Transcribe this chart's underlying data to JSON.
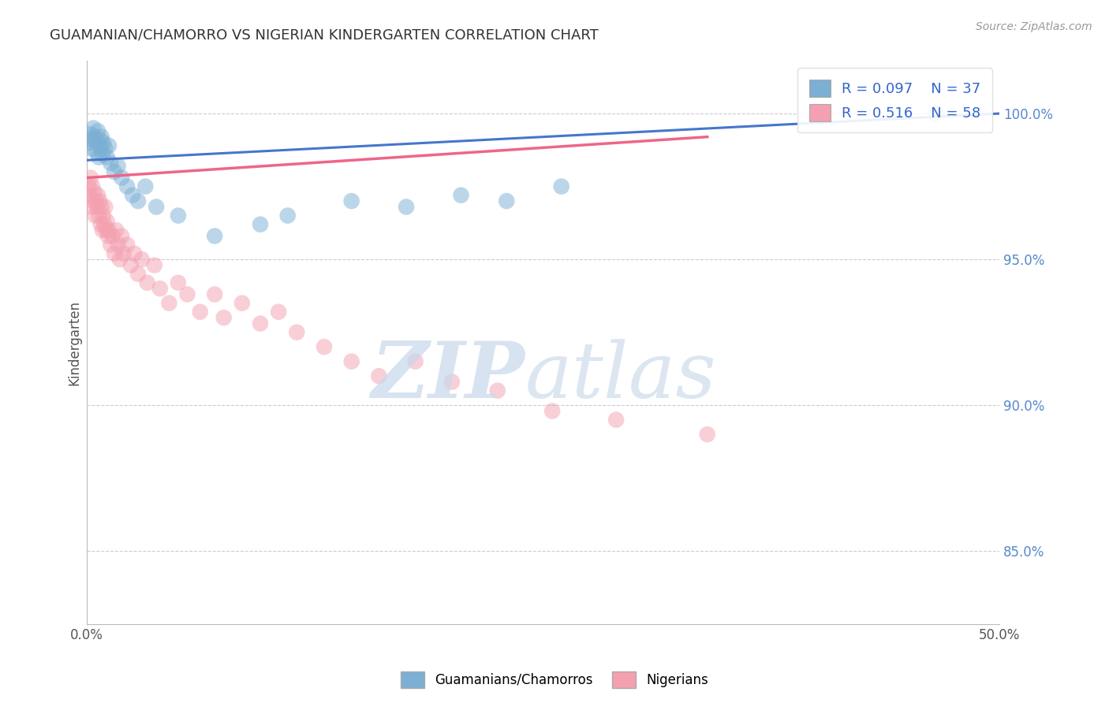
{
  "title": "GUAMANIAN/CHAMORRO VS NIGERIAN KINDERGARTEN CORRELATION CHART",
  "source": "Source: ZipAtlas.com",
  "ylabel": "Kindergarten",
  "xlim": [
    0.0,
    50.0
  ],
  "ylim": [
    82.5,
    101.8
  ],
  "yticks": [
    85.0,
    90.0,
    95.0,
    100.0
  ],
  "ytick_labels": [
    "85.0%",
    "90.0%",
    "95.0%",
    "100.0%"
  ],
  "xticks": [
    0.0,
    10.0,
    20.0,
    30.0,
    40.0,
    50.0
  ],
  "xtick_labels": [
    "0.0%",
    "",
    "",
    "",
    "",
    "50.0%"
  ],
  "blue_R": 0.097,
  "blue_N": 37,
  "pink_R": 0.516,
  "pink_N": 58,
  "blue_color": "#7BAFD4",
  "pink_color": "#F4A0B0",
  "blue_line_color": "#4477CC",
  "pink_line_color": "#EE6688",
  "legend_label_blue": "Guamanians/Chamorros",
  "legend_label_pink": "Nigerians",
  "blue_x": [
    0.15,
    0.2,
    0.25,
    0.3,
    0.35,
    0.4,
    0.5,
    0.55,
    0.6,
    0.65,
    0.7,
    0.75,
    0.8,
    0.85,
    0.9,
    1.0,
    1.1,
    1.2,
    1.3,
    1.5,
    1.7,
    1.9,
    2.2,
    2.5,
    2.8,
    3.2,
    3.8,
    5.0,
    7.0,
    9.5,
    11.0,
    14.5,
    17.5,
    20.5,
    23.0,
    26.0,
    46.5
  ],
  "blue_y": [
    99.0,
    99.3,
    98.8,
    99.1,
    99.5,
    99.2,
    98.7,
    99.0,
    99.4,
    98.5,
    99.1,
    98.8,
    99.2,
    98.6,
    99.0,
    98.8,
    98.5,
    98.9,
    98.3,
    98.0,
    98.2,
    97.8,
    97.5,
    97.2,
    97.0,
    97.5,
    96.8,
    96.5,
    95.8,
    96.2,
    96.5,
    97.0,
    96.8,
    97.2,
    97.0,
    97.5,
    100.0
  ],
  "pink_x": [
    0.1,
    0.15,
    0.2,
    0.25,
    0.3,
    0.35,
    0.4,
    0.45,
    0.5,
    0.55,
    0.6,
    0.65,
    0.7,
    0.75,
    0.8,
    0.85,
    0.9,
    0.95,
    1.0,
    1.05,
    1.1,
    1.15,
    1.2,
    1.3,
    1.4,
    1.5,
    1.6,
    1.7,
    1.8,
    1.9,
    2.0,
    2.2,
    2.4,
    2.6,
    2.8,
    3.0,
    3.3,
    3.7,
    4.0,
    4.5,
    5.0,
    5.5,
    6.2,
    7.0,
    7.5,
    8.5,
    9.5,
    10.5,
    11.5,
    13.0,
    14.5,
    16.0,
    18.0,
    20.0,
    22.5,
    25.5,
    29.0,
    34.0
  ],
  "pink_y": [
    97.5,
    97.2,
    97.8,
    96.8,
    97.5,
    97.0,
    97.3,
    96.5,
    97.0,
    96.8,
    97.2,
    96.5,
    97.0,
    96.2,
    96.8,
    96.0,
    96.5,
    96.2,
    96.8,
    96.0,
    96.3,
    95.8,
    96.0,
    95.5,
    95.8,
    95.2,
    96.0,
    95.5,
    95.0,
    95.8,
    95.2,
    95.5,
    94.8,
    95.2,
    94.5,
    95.0,
    94.2,
    94.8,
    94.0,
    93.5,
    94.2,
    93.8,
    93.2,
    93.8,
    93.0,
    93.5,
    92.8,
    93.2,
    92.5,
    92.0,
    91.5,
    91.0,
    91.5,
    90.8,
    90.5,
    89.8,
    89.5,
    89.0
  ],
  "blue_line_x0": 0.0,
  "blue_line_x1": 50.0,
  "blue_line_y0": 98.4,
  "blue_line_y1": 100.0,
  "pink_line_x0": 0.0,
  "pink_line_x1": 34.0,
  "pink_line_y0": 97.8,
  "pink_line_y1": 99.2
}
